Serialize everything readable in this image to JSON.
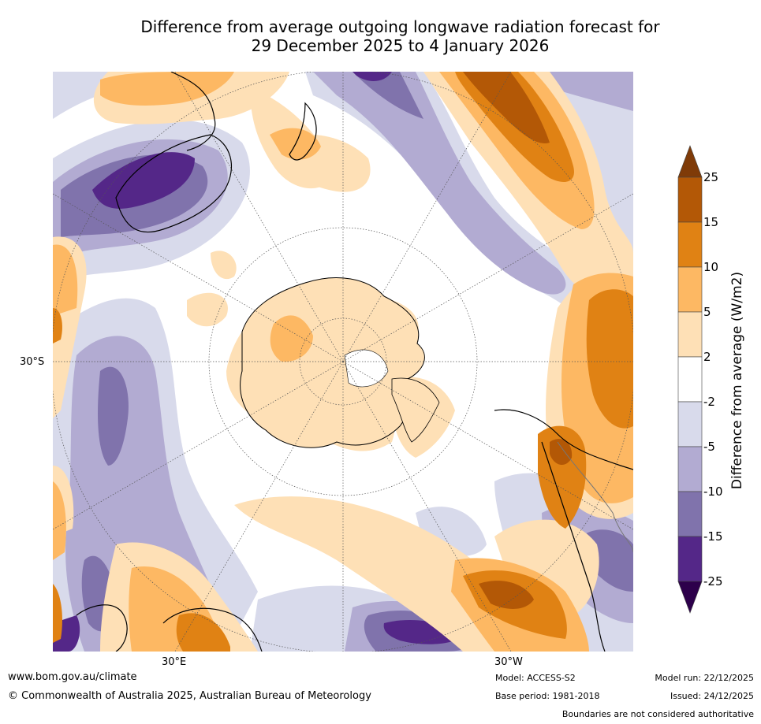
{
  "title": {
    "line1": "Difference from average outgoing longwave radiation forecast for",
    "line2": "29 December 2025 to 4 January 2026"
  },
  "map": {
    "projection": "south-polar-stereographic",
    "region": "Southern Hemisphere",
    "labels": {
      "lat_30s": "30°S",
      "lon_30e": "30°E",
      "lon_30w": "30°W"
    }
  },
  "colorbar": {
    "title": "Difference from average (W/m2)",
    "ticks": [
      "25",
      "15",
      "10",
      "5",
      "2",
      "-2",
      "-5",
      "-10",
      "-15",
      "-25"
    ],
    "bins": [
      {
        "range": ">25",
        "color": "#7f3b08"
      },
      {
        "range": "15 to 25",
        "color": "#b35806"
      },
      {
        "range": "10 to 15",
        "color": "#e08214"
      },
      {
        "range": "5 to 10",
        "color": "#fdb863"
      },
      {
        "range": "2 to 5",
        "color": "#fee0b6"
      },
      {
        "range": "-2 to 2",
        "color": "#ffffff"
      },
      {
        "range": "-5 to -2",
        "color": "#d8daeb"
      },
      {
        "range": "-10 to -5",
        "color": "#b2abd2"
      },
      {
        "range": "-15 to -10",
        "color": "#8073ac"
      },
      {
        "range": "-25 to -15",
        "color": "#542788"
      },
      {
        "range": "<-25",
        "color": "#2d004b"
      }
    ]
  },
  "footer": {
    "website": "www.bom.gov.au/climate",
    "copyright": "© Commonwealth of Australia 2025, Australian Bureau of Meteorology",
    "model": "Model: ACCESS-S2",
    "base_period": "Base period: 1981-2018",
    "model_run": "Model run: 22/12/2025",
    "issued": "Issued: 24/12/2025",
    "disclaimer": "Boundaries are not considered authoritative"
  }
}
